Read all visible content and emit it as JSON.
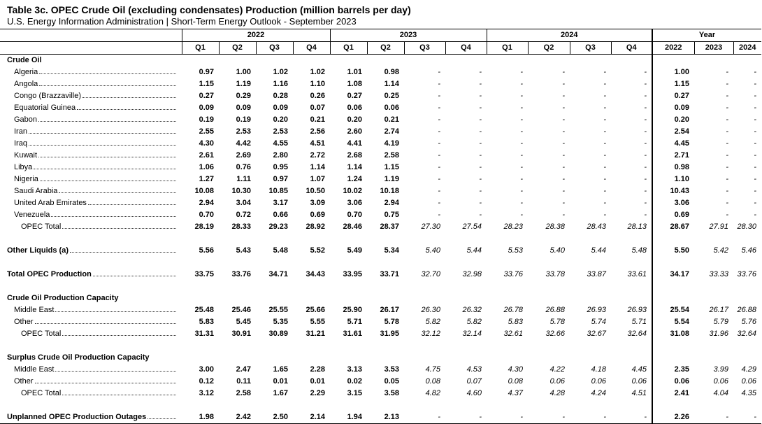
{
  "title": "Table 3c.  OPEC Crude Oil (excluding condensates) Production (million barrels per day)",
  "subtitle": "U.S. Energy Information Administration  |  Short-Term Energy Outlook - September 2023",
  "table": {
    "groups": [
      {
        "label": "2022",
        "columns": [
          "Q1",
          "Q2",
          "Q3",
          "Q4"
        ]
      },
      {
        "label": "2023",
        "columns": [
          "Q1",
          "Q2",
          "Q3",
          "Q4"
        ]
      },
      {
        "label": "2024",
        "columns": [
          "Q1",
          "Q2",
          "Q3",
          "Q4"
        ]
      },
      {
        "label": "Year",
        "columns": [
          "2022",
          "2023",
          "2024"
        ]
      }
    ],
    "sections": [
      {
        "heading": "Crude Oil",
        "rows": [
          {
            "label": "Algeria",
            "values": [
              "0.97",
              "1.00",
              "1.02",
              "1.02",
              "1.01",
              "0.98",
              "-",
              "-",
              "-",
              "-",
              "-",
              "-",
              "1.00",
              "-",
              "-"
            ]
          },
          {
            "label": "Angola",
            "values": [
              "1.15",
              "1.19",
              "1.16",
              "1.10",
              "1.08",
              "1.14",
              "-",
              "-",
              "-",
              "-",
              "-",
              "-",
              "1.15",
              "-",
              "-"
            ]
          },
          {
            "label": "Congo (Brazzaville)",
            "values": [
              "0.27",
              "0.29",
              "0.28",
              "0.26",
              "0.27",
              "0.25",
              "-",
              "-",
              "-",
              "-",
              "-",
              "-",
              "0.27",
              "-",
              "-"
            ]
          },
          {
            "label": "Equatorial Guinea",
            "values": [
              "0.09",
              "0.09",
              "0.09",
              "0.07",
              "0.06",
              "0.06",
              "-",
              "-",
              "-",
              "-",
              "-",
              "-",
              "0.09",
              "-",
              "-"
            ]
          },
          {
            "label": "Gabon",
            "values": [
              "0.19",
              "0.19",
              "0.20",
              "0.21",
              "0.20",
              "0.21",
              "-",
              "-",
              "-",
              "-",
              "-",
              "-",
              "0.20",
              "-",
              "-"
            ]
          },
          {
            "label": "Iran",
            "values": [
              "2.55",
              "2.53",
              "2.53",
              "2.56",
              "2.60",
              "2.74",
              "-",
              "-",
              "-",
              "-",
              "-",
              "-",
              "2.54",
              "-",
              "-"
            ]
          },
          {
            "label": "Iraq",
            "values": [
              "4.30",
              "4.42",
              "4.55",
              "4.51",
              "4.41",
              "4.19",
              "-",
              "-",
              "-",
              "-",
              "-",
              "-",
              "4.45",
              "-",
              "-"
            ]
          },
          {
            "label": "Kuwait",
            "values": [
              "2.61",
              "2.69",
              "2.80",
              "2.72",
              "2.68",
              "2.58",
              "-",
              "-",
              "-",
              "-",
              "-",
              "-",
              "2.71",
              "-",
              "-"
            ]
          },
          {
            "label": "Libya",
            "values": [
              "1.06",
              "0.76",
              "0.95",
              "1.14",
              "1.14",
              "1.15",
              "-",
              "-",
              "-",
              "-",
              "-",
              "-",
              "0.98",
              "-",
              "-"
            ]
          },
          {
            "label": "Nigeria",
            "values": [
              "1.27",
              "1.11",
              "0.97",
              "1.07",
              "1.24",
              "1.19",
              "-",
              "-",
              "-",
              "-",
              "-",
              "-",
              "1.10",
              "-",
              "-"
            ]
          },
          {
            "label": "Saudi Arabia",
            "values": [
              "10.08",
              "10.30",
              "10.85",
              "10.50",
              "10.02",
              "10.18",
              "-",
              "-",
              "-",
              "-",
              "-",
              "-",
              "10.43",
              "-",
              "-"
            ]
          },
          {
            "label": "United Arab Emirates",
            "values": [
              "2.94",
              "3.04",
              "3.17",
              "3.09",
              "3.06",
              "2.94",
              "-",
              "-",
              "-",
              "-",
              "-",
              "-",
              "3.06",
              "-",
              "-"
            ]
          },
          {
            "label": "Venezuela",
            "values": [
              "0.70",
              "0.72",
              "0.66",
              "0.69",
              "0.70",
              "0.75",
              "-",
              "-",
              "-",
              "-",
              "-",
              "-",
              "0.69",
              "-",
              "-"
            ]
          },
          {
            "label": "OPEC Total",
            "values": [
              "28.19",
              "28.33",
              "29.23",
              "28.92",
              "28.46",
              "28.37",
              "27.30",
              "27.54",
              "28.23",
              "28.38",
              "28.43",
              "28.13",
              "28.67",
              "27.91",
              "28.30"
            ]
          }
        ]
      },
      {
        "rows": [
          {
            "label": "Other Liquids (a)",
            "values": [
              "5.56",
              "5.43",
              "5.48",
              "5.52",
              "5.49",
              "5.34",
              "5.40",
              "5.44",
              "5.53",
              "5.40",
              "5.44",
              "5.48",
              "5.50",
              "5.42",
              "5.46"
            ]
          }
        ]
      },
      {
        "rows": [
          {
            "label": "Total OPEC Production",
            "values": [
              "33.75",
              "33.76",
              "34.71",
              "34.43",
              "33.95",
              "33.71",
              "32.70",
              "32.98",
              "33.76",
              "33.78",
              "33.87",
              "33.61",
              "34.17",
              "33.33",
              "33.76"
            ]
          }
        ]
      },
      {
        "heading": "Crude Oil Production Capacity",
        "rows": [
          {
            "label": "Middle East",
            "values": [
              "25.48",
              "25.46",
              "25.55",
              "25.66",
              "25.90",
              "26.17",
              "26.30",
              "26.32",
              "26.78",
              "26.88",
              "26.93",
              "26.93",
              "25.54",
              "26.17",
              "26.88"
            ]
          },
          {
            "label": "Other",
            "values": [
              "5.83",
              "5.45",
              "5.35",
              "5.55",
              "5.71",
              "5.78",
              "5.82",
              "5.82",
              "5.83",
              "5.78",
              "5.74",
              "5.71",
              "5.54",
              "5.79",
              "5.76"
            ]
          },
          {
            "label": "OPEC Total",
            "values": [
              "31.31",
              "30.91",
              "30.89",
              "31.21",
              "31.61",
              "31.95",
              "32.12",
              "32.14",
              "32.61",
              "32.66",
              "32.67",
              "32.64",
              "31.08",
              "31.96",
              "32.64"
            ]
          }
        ]
      },
      {
        "heading": "Surplus Crude Oil Production Capacity",
        "rows": [
          {
            "label": "Middle East",
            "values": [
              "3.00",
              "2.47",
              "1.65",
              "2.28",
              "3.13",
              "3.53",
              "4.75",
              "4.53",
              "4.30",
              "4.22",
              "4.18",
              "4.45",
              "2.35",
              "3.99",
              "4.29"
            ]
          },
          {
            "label": "Other",
            "values": [
              "0.12",
              "0.11",
              "0.01",
              "0.01",
              "0.02",
              "0.05",
              "0.08",
              "0.07",
              "0.08",
              "0.06",
              "0.06",
              "0.06",
              "0.06",
              "0.06",
              "0.06"
            ]
          },
          {
            "label": "OPEC Total",
            "values": [
              "3.12",
              "2.58",
              "1.67",
              "2.29",
              "3.15",
              "3.58",
              "4.82",
              "4.60",
              "4.37",
              "4.28",
              "4.24",
              "4.51",
              "2.41",
              "4.04",
              "4.35"
            ]
          }
        ]
      },
      {
        "rows": [
          {
            "label": "Unplanned OPEC Production Outages",
            "values": [
              "1.98",
              "2.42",
              "2.50",
              "2.14",
              "1.94",
              "2.13",
              "-",
              "-",
              "-",
              "-",
              "-",
              "-",
              "2.26",
              "-",
              "-"
            ]
          }
        ]
      }
    ]
  }
}
